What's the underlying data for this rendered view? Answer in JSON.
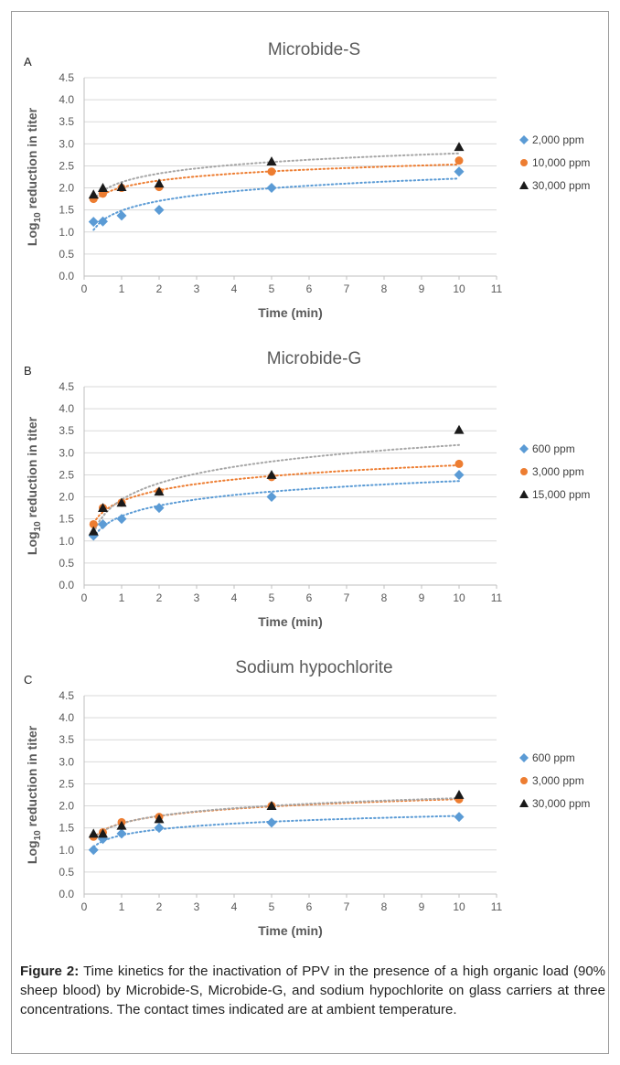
{
  "chart_data": [
    {
      "panel": "A",
      "type": "scatter",
      "title": "Microbide-S",
      "xlabel": "Time (min)",
      "ylabel_main": "Log",
      "ylabel_sub": "10",
      "ylabel_rest": " reduction in titer",
      "xlim": [
        0,
        11
      ],
      "ylim": [
        0,
        4.5
      ],
      "x_ticks": [
        "0",
        "1",
        "2",
        "3",
        "4",
        "5",
        "6",
        "7",
        "8",
        "9",
        "10",
        "11"
      ],
      "y_ticks": [
        "0.0",
        "0.5",
        "1.0",
        "1.5",
        "2.0",
        "2.5",
        "3.0",
        "3.5",
        "4.0",
        "4.5"
      ],
      "grid": "horizontal",
      "trendline": "logarithmic, dotted",
      "legend_position": "right",
      "series": [
        {
          "name": "2,000 ppm",
          "marker": "diamond",
          "color": "#5b9bd5",
          "x": [
            0.25,
            0.5,
            1,
            2,
            5,
            10
          ],
          "y": [
            1.23,
            1.24,
            1.37,
            1.5,
            2.0,
            2.37
          ]
        },
        {
          "name": "10,000 ppm",
          "marker": "circle",
          "color": "#ed7d31",
          "x": [
            0.25,
            0.5,
            1,
            2,
            5,
            10
          ],
          "y": [
            1.75,
            1.87,
            2.0,
            2.02,
            2.37,
            2.62
          ]
        },
        {
          "name": "30,000 ppm",
          "marker": "triangle",
          "color": "#1a1a1a",
          "x": [
            0.25,
            0.5,
            1,
            2,
            5,
            10
          ],
          "y": [
            1.85,
            2.0,
            2.02,
            2.1,
            2.6,
            2.93
          ]
        }
      ]
    },
    {
      "panel": "B",
      "type": "scatter",
      "title": "Microbide-G",
      "xlabel": "Time (min)",
      "ylabel_main": "Log",
      "ylabel_sub": "10",
      "ylabel_rest": " reduction in titer",
      "xlim": [
        0,
        11
      ],
      "ylim": [
        0,
        4.5
      ],
      "x_ticks": [
        "0",
        "1",
        "2",
        "3",
        "4",
        "5",
        "6",
        "7",
        "8",
        "9",
        "10",
        "11"
      ],
      "y_ticks": [
        "0.0",
        "0.5",
        "1.0",
        "1.5",
        "2.0",
        "2.5",
        "3.0",
        "3.5",
        "4.0",
        "4.5"
      ],
      "grid": "horizontal",
      "trendline": "logarithmic, dotted",
      "legend_position": "right",
      "series": [
        {
          "name": "600 ppm",
          "marker": "diamond",
          "color": "#5b9bd5",
          "x": [
            0.25,
            0.5,
            1,
            2,
            5,
            10
          ],
          "y": [
            1.12,
            1.38,
            1.5,
            1.75,
            2.0,
            2.5
          ]
        },
        {
          "name": "3,000 ppm",
          "marker": "circle",
          "color": "#ed7d31",
          "x": [
            0.25,
            0.5,
            1,
            2,
            5,
            10
          ],
          "y": [
            1.38,
            1.75,
            1.87,
            2.12,
            2.45,
            2.75
          ]
        },
        {
          "name": "15,000 ppm",
          "marker": "triangle",
          "color": "#1a1a1a",
          "x": [
            0.25,
            0.5,
            1,
            2,
            5,
            10
          ],
          "y": [
            1.22,
            1.75,
            1.87,
            2.12,
            2.5,
            3.52
          ]
        }
      ]
    },
    {
      "panel": "C",
      "type": "scatter",
      "title": "Sodium hypochlorite",
      "xlabel": "Time (min)",
      "ylabel_main": "Log",
      "ylabel_sub": "10",
      "ylabel_rest": " reduction in titer",
      "xlim": [
        0,
        11
      ],
      "ylim": [
        0,
        4.5
      ],
      "x_ticks": [
        "0",
        "1",
        "2",
        "3",
        "4",
        "5",
        "6",
        "7",
        "8",
        "9",
        "10",
        "11"
      ],
      "y_ticks": [
        "0.0",
        "0.5",
        "1.0",
        "1.5",
        "2.0",
        "2.5",
        "3.0",
        "3.5",
        "4.0",
        "4.5"
      ],
      "grid": "horizontal",
      "trendline": "logarithmic, dotted",
      "legend_position": "right",
      "series": [
        {
          "name": "600 ppm",
          "marker": "diamond",
          "color": "#5b9bd5",
          "x": [
            0.25,
            0.5,
            1,
            2,
            5,
            10
          ],
          "y": [
            1.0,
            1.25,
            1.37,
            1.5,
            1.62,
            1.75
          ]
        },
        {
          "name": "3,000 ppm",
          "marker": "circle",
          "color": "#ed7d31",
          "x": [
            0.25,
            0.5,
            1,
            2,
            5,
            10
          ],
          "y": [
            1.3,
            1.4,
            1.63,
            1.75,
            2.0,
            2.15
          ]
        },
        {
          "name": "30,000 ppm",
          "marker": "triangle",
          "color": "#1a1a1a",
          "x": [
            0.25,
            0.5,
            1,
            2,
            5,
            10
          ],
          "y": [
            1.37,
            1.37,
            1.55,
            1.7,
            2.0,
            2.25
          ]
        }
      ]
    }
  ],
  "caption": {
    "label": "Figure 2:",
    "text": " Time kinetics for the inactivation of PPV in the presence of a high organic load (90% sheep blood) by Microbide-S, Microbide-G, and sodium hypochlorite on glass carriers at three concentrations. The contact times indicated are at ambient temperature."
  }
}
